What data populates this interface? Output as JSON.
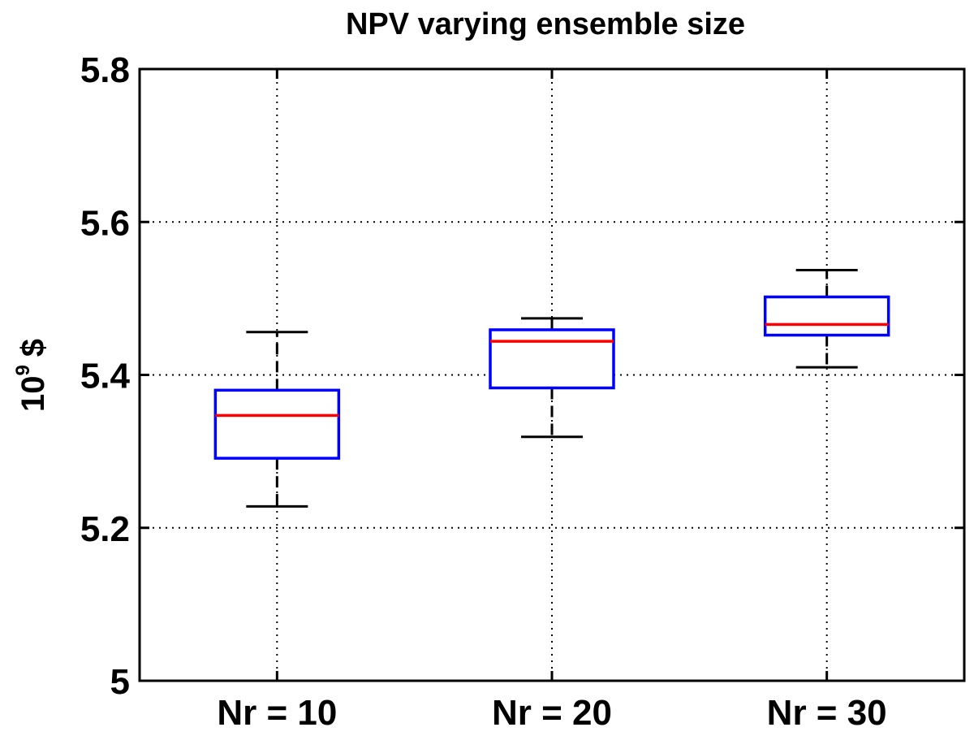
{
  "chart_data": {
    "type": "box",
    "title": "NPV varying ensemble size",
    "ylabel": {
      "base": "10",
      "exponent": "9",
      "unit": "$"
    },
    "xlabel": "",
    "categories": [
      "Nr = 10",
      "Nr = 20",
      "Nr = 30"
    ],
    "ylim": [
      5,
      5.8
    ],
    "yticks": [
      5,
      5.2,
      5.4,
      5.6,
      5.8
    ],
    "ytick_labels": [
      "5",
      "5.2",
      "5.4",
      "5.6",
      "5.8"
    ],
    "grid": true,
    "boxes": [
      {
        "category": "Nr = 10",
        "whisker_low": 5.228,
        "q1": 5.291,
        "median": 5.347,
        "q3": 5.38,
        "whisker_high": 5.456
      },
      {
        "category": "Nr = 20",
        "whisker_low": 5.319,
        "q1": 5.383,
        "median": 5.444,
        "q3": 5.459,
        "whisker_high": 5.474
      },
      {
        "category": "Nr = 30",
        "whisker_low": 5.41,
        "q1": 5.452,
        "median": 5.466,
        "q3": 5.502,
        "whisker_high": 5.537
      }
    ],
    "colors": {
      "box": "#0000ff",
      "median": "#ff0000",
      "whisker": "#000000",
      "grid": "#000000",
      "axes": "#000000"
    }
  }
}
